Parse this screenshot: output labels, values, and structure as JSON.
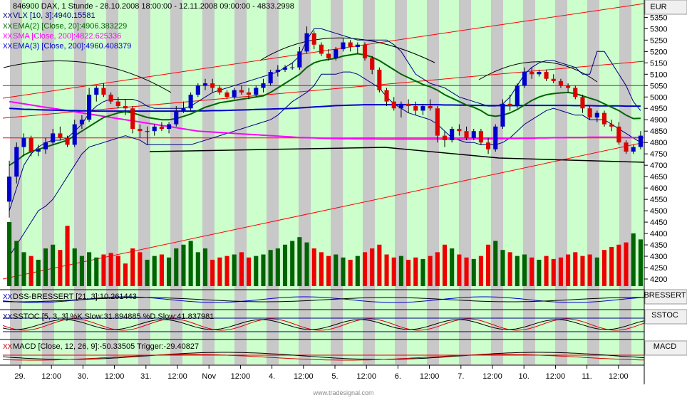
{
  "header": {
    "symbol_line": "846900  DAX, 1 Stunde - 28.10.2008 18:00:00 - 12.11.2008 09:00:00 - 4833.2998"
  },
  "currency": "EUR",
  "watermark": "www.tradesignal.com",
  "legend": [
    {
      "text": "VLX [10, 3]:4940.15581",
      "color": "#000080"
    },
    {
      "text": "EMA(2) [Close, 20]:4906.383229",
      "color": "#006400"
    },
    {
      "text": "SMA [Close, 200]:4822.625336",
      "color": "#ff00ff"
    },
    {
      "text": "EMA(3) [Close, 200]:4960.408379",
      "color": "#0000cc"
    }
  ],
  "panels": {
    "dss": {
      "legend": "DSS-BRESSERT [21, 3]:10.261443",
      "label": "BRESSERT"
    },
    "sstoc": {
      "legend": "SSTOC [5, 3, 3] %K Slow:31.894885 %D Slow:41.837981",
      "label": "SSTOC"
    },
    "macd": {
      "legend": "MACD [Close, 12, 26, 9]:-50.33505  Trigger:-29.40827",
      "label": "MACD"
    }
  },
  "chart_data": {
    "type": "candlestick",
    "x_axis": {
      "labels": [
        "29.",
        "12:00",
        "30.",
        "12:00",
        "31.",
        "12:00",
        "Nov",
        "12:00",
        "4.",
        "12:00",
        "5.",
        "12:00",
        "6.",
        "12:00",
        "7.",
        "12:00",
        "10.",
        "12:00",
        "11.",
        "12:00"
      ]
    },
    "y_axis": {
      "ticks": [
        4200,
        4250,
        4300,
        4350,
        4400,
        4450,
        4500,
        4550,
        4600,
        4650,
        4700,
        4750,
        4800,
        4850,
        4900,
        4950,
        5000,
        5050,
        5100,
        5150,
        5200,
        5250,
        5300,
        5350
      ],
      "range": [
        4175,
        5420
      ]
    },
    "candles_ohlc": [
      [
        4540,
        4720,
        4470,
        4650
      ],
      [
        4650,
        4800,
        4620,
        4780
      ],
      [
        4780,
        4840,
        4740,
        4820
      ],
      [
        4820,
        4830,
        4740,
        4760
      ],
      [
        4760,
        4790,
        4740,
        4770
      ],
      [
        4770,
        4820,
        4750,
        4800
      ],
      [
        4800,
        4860,
        4790,
        4840
      ],
      [
        4840,
        4870,
        4810,
        4820
      ],
      [
        4820,
        4830,
        4780,
        4790
      ],
      [
        4790,
        4900,
        4780,
        4880
      ],
      [
        4880,
        4920,
        4860,
        4900
      ],
      [
        4900,
        5040,
        4890,
        5010
      ],
      [
        5010,
        5050,
        4980,
        5040
      ],
      [
        5040,
        5060,
        5000,
        5010
      ],
      [
        5010,
        5020,
        4970,
        4980
      ],
      [
        4980,
        5000,
        4950,
        4960
      ],
      [
        4960,
        4990,
        4920,
        4950
      ],
      [
        4950,
        4960,
        4840,
        4860
      ],
      [
        4860,
        4880,
        4820,
        4850
      ],
      [
        4850,
        4870,
        4790,
        4850
      ],
      [
        4850,
        4880,
        4830,
        4870
      ],
      [
        4870,
        4890,
        4850,
        4860
      ],
      [
        4860,
        4890,
        4840,
        4880
      ],
      [
        4880,
        4960,
        4870,
        4940
      ],
      [
        4940,
        4980,
        4930,
        4950
      ],
      [
        4950,
        5020,
        4940,
        5010
      ],
      [
        5010,
        5060,
        5000,
        5050
      ],
      [
        5050,
        5080,
        5030,
        5060
      ],
      [
        5060,
        5080,
        5020,
        5040
      ],
      [
        5040,
        5050,
        5010,
        5020
      ],
      [
        5020,
        5030,
        4990,
        5000
      ],
      [
        5000,
        5040,
        4990,
        5030
      ],
      [
        5030,
        5050,
        5010,
        5020
      ],
      [
        5020,
        5040,
        4990,
        5010
      ],
      [
        5010,
        5050,
        5000,
        5040
      ],
      [
        5040,
        5080,
        5020,
        5060
      ],
      [
        5060,
        5120,
        5050,
        5110
      ],
      [
        5110,
        5140,
        5090,
        5120
      ],
      [
        5120,
        5140,
        5110,
        5130
      ],
      [
        5130,
        5150,
        5120,
        5130
      ],
      [
        5130,
        5220,
        5120,
        5200
      ],
      [
        5200,
        5310,
        5190,
        5280
      ],
      [
        5280,
        5290,
        5210,
        5230
      ],
      [
        5230,
        5240,
        5180,
        5190
      ],
      [
        5190,
        5210,
        5160,
        5170
      ],
      [
        5170,
        5220,
        5160,
        5210
      ],
      [
        5210,
        5260,
        5200,
        5240
      ],
      [
        5240,
        5250,
        5200,
        5220
      ],
      [
        5220,
        5240,
        5190,
        5230
      ],
      [
        5230,
        5240,
        5160,
        5170
      ],
      [
        5170,
        5180,
        5100,
        5120
      ],
      [
        5120,
        5130,
        5020,
        5030
      ],
      [
        5030,
        5040,
        4960,
        4980
      ],
      [
        4980,
        5000,
        4940,
        4950
      ],
      [
        4950,
        4980,
        4910,
        4970
      ],
      [
        4970,
        4990,
        4930,
        4960
      ],
      [
        4960,
        4980,
        4920,
        4940
      ],
      [
        4940,
        4970,
        4920,
        4960
      ],
      [
        4960,
        4990,
        4940,
        4950
      ],
      [
        4950,
        4960,
        4800,
        4830
      ],
      [
        4830,
        4850,
        4780,
        4810
      ],
      [
        4810,
        4870,
        4800,
        4860
      ],
      [
        4860,
        4880,
        4830,
        4850
      ],
      [
        4850,
        4870,
        4810,
        4820
      ],
      [
        4820,
        4860,
        4810,
        4850
      ],
      [
        4850,
        4860,
        4790,
        4800
      ],
      [
        4800,
        4820,
        4750,
        4770
      ],
      [
        4770,
        4880,
        4760,
        4870
      ],
      [
        4870,
        4990,
        4860,
        4970
      ],
      [
        4970,
        5010,
        4940,
        4960
      ],
      [
        4960,
        5060,
        4950,
        5050
      ],
      [
        5050,
        5130,
        5040,
        5110
      ],
      [
        5110,
        5130,
        5080,
        5100
      ],
      [
        5100,
        5120,
        5090,
        5110
      ],
      [
        5110,
        5120,
        5070,
        5080
      ],
      [
        5080,
        5100,
        5060,
        5070
      ],
      [
        5070,
        5080,
        5040,
        5050
      ],
      [
        5050,
        5060,
        5020,
        5040
      ],
      [
        5040,
        5050,
        4990,
        5000
      ],
      [
        5000,
        5010,
        4930,
        4950
      ],
      [
        4950,
        4960,
        4900,
        4910
      ],
      [
        4910,
        4940,
        4890,
        4930
      ],
      [
        4930,
        4940,
        4870,
        4880
      ],
      [
        4880,
        4900,
        4850,
        4870
      ],
      [
        4870,
        4890,
        4790,
        4800
      ],
      [
        4800,
        4810,
        4750,
        4760
      ],
      [
        4760,
        4790,
        4750,
        4780
      ],
      [
        4780,
        4850,
        4770,
        4830
      ]
    ],
    "volume": [
      85,
      60,
      45,
      40,
      35,
      50,
      55,
      48,
      80,
      50,
      40,
      45,
      38,
      42,
      44,
      40,
      30,
      50,
      45,
      35,
      40,
      42,
      38,
      50,
      55,
      60,
      45,
      50,
      35,
      38,
      40,
      42,
      45,
      38,
      40,
      42,
      48,
      50,
      55,
      60,
      65,
      58,
      50,
      45,
      40,
      42,
      38,
      35,
      40,
      45,
      50,
      55,
      42,
      38,
      40,
      35,
      38,
      36,
      40,
      45,
      55,
      50,
      42,
      38,
      36,
      40,
      55,
      60,
      48,
      45,
      40,
      42,
      38,
      35,
      40,
      36,
      38,
      42,
      45,
      40,
      42,
      38,
      48,
      52,
      55,
      58,
      70,
      62
    ],
    "lines": {
      "ema20": [
        4700,
        4720,
        4745,
        4760,
        4770,
        4780,
        4790,
        4800,
        4810,
        4830,
        4850,
        4870,
        4890,
        4910,
        4920,
        4930,
        4935,
        4930,
        4920,
        4910,
        4905,
        4900,
        4900,
        4905,
        4915,
        4925,
        4940,
        4955,
        4965,
        4975,
        4980,
        4985,
        4990,
        4995,
        5000,
        5005,
        5020,
        5040,
        5060,
        5080,
        5100,
        5130,
        5150,
        5160,
        5165,
        5170,
        5180,
        5185,
        5190,
        5185,
        5175,
        5160,
        5140,
        5120,
        5100,
        5085,
        5070,
        5055,
        5045,
        5030,
        5010,
        4995,
        4980,
        4965,
        4955,
        4940,
        4920,
        4915,
        4920,
        4930,
        4945,
        4965,
        4985,
        5000,
        5010,
        5015,
        5018,
        5020,
        5015,
        5005,
        4995,
        4985,
        4970,
        4955,
        4940,
        4920,
        4905,
        4906
      ],
      "sma200": [
        4980,
        4975,
        4970,
        4965,
        4960,
        4955,
        4950,
        4945,
        4940,
        4935,
        4930,
        4925,
        4920,
        4915,
        4910,
        4905,
        4900,
        4895,
        4890,
        4885,
        4880,
        4875,
        4870,
        4865,
        4860,
        4855,
        4850,
        4848,
        4846,
        4844,
        4842,
        4840,
        4838,
        4836,
        4834,
        4832,
        4830,
        4828,
        4826,
        4824,
        4822,
        4821,
        4820,
        4819,
        4818,
        4818,
        4817,
        4817,
        4816,
        4816,
        4816,
        4815,
        4815,
        4815,
        4815,
        4815,
        4815,
        4815,
        4815,
        4815,
        4815,
        4815,
        4815,
        4815,
        4816,
        4816,
        4816,
        4817,
        4817,
        4818,
        4818,
        4819,
        4819,
        4820,
        4820,
        4821,
        4821,
        4822,
        4822,
        4822,
        4823,
        4823,
        4823,
        4823,
        4823,
        4822,
        4822,
        4822
      ],
      "ema200": [
        4950,
        4948,
        4946,
        4945,
        4944,
        4943,
        4942,
        4941,
        4940,
        4940,
        4939,
        4939,
        4938,
        4938,
        4938,
        4938,
        4938,
        4938,
        4938,
        4938,
        4938,
        4938,
        4938,
        4938,
        4938,
        4938,
        4939,
        4939,
        4940,
        4940,
        4941,
        4942,
        4943,
        4944,
        4945,
        4946,
        4947,
        4948,
        4949,
        4950,
        4952,
        4954,
        4956,
        4958,
        4960,
        4962,
        4963,
        4964,
        4965,
        4966,
        4966,
        4966,
        4966,
        4966,
        4966,
        4966,
        4966,
        4966,
        4966,
        4966,
        4965,
        4965,
        4964,
        4964,
        4963,
        4963,
        4962,
        4962,
        4962,
        4962,
        4962,
        4963,
        4963,
        4963,
        4963,
        4963,
        4963,
        4963,
        4962,
        4962,
        4962,
        4961,
        4961,
        4961,
        4961,
        4960,
        4960,
        4960
      ],
      "vlx_upper": [
        4500,
        4600,
        4700,
        4750,
        4780,
        4800,
        4810,
        4810,
        4820,
        4850,
        4880,
        4930,
        4960,
        4980,
        4990,
        4990,
        4990,
        4990,
        4980,
        4960,
        4950,
        4950,
        4950,
        4950,
        4950,
        4960,
        4980,
        5000,
        5020,
        5030,
        5040,
        5050,
        5060,
        5070,
        5080,
        5090,
        5100,
        5110,
        5130,
        5150,
        5180,
        5250,
        5300,
        5300,
        5290,
        5280,
        5270,
        5260,
        5250,
        5250,
        5250,
        5250,
        5250,
        5230,
        5200,
        5150,
        5100,
        5080,
        5060,
        5050,
        5040,
        5020,
        5000,
        4990,
        4980,
        4970,
        4960,
        4960,
        4970,
        5000,
        5050,
        5100,
        5130,
        5150,
        5160,
        5160,
        5150,
        5140,
        5130,
        5100,
        5100,
        5200,
        5200,
        5150,
        5100,
        5050,
        4980,
        4940
      ],
      "vlx_lower": [
        4300,
        4350,
        4400,
        4450,
        4500,
        4520,
        4550,
        4600,
        4650,
        4700,
        4750,
        4780,
        4790,
        4800,
        4810,
        4820,
        4830,
        4820,
        4810,
        4790,
        4790,
        4790,
        4790,
        4790,
        4790,
        4790,
        4800,
        4810,
        4820,
        4830,
        4840,
        4850,
        4860,
        4870,
        4880,
        4890,
        4900,
        4920,
        4950,
        4980,
        5000,
        5020,
        5050,
        5100,
        5100,
        5100,
        5110,
        5110,
        5100,
        5080,
        5060,
        5040,
        5000,
        4970,
        4950,
        4930,
        4920,
        4910,
        4900,
        4880,
        4850,
        4820,
        4810,
        4800,
        4800,
        4790,
        4790,
        4790,
        4800,
        4820,
        4850,
        4880,
        4900,
        4920,
        4940,
        4950,
        4940,
        4930,
        4920,
        4920,
        4900,
        4900,
        4900,
        4880,
        4860,
        4840,
        4820,
        4800
      ]
    },
    "horizontal_lines": [
      {
        "color": "red",
        "value": 5050
      },
      {
        "color": "red",
        "value": 4820
      }
    ]
  }
}
